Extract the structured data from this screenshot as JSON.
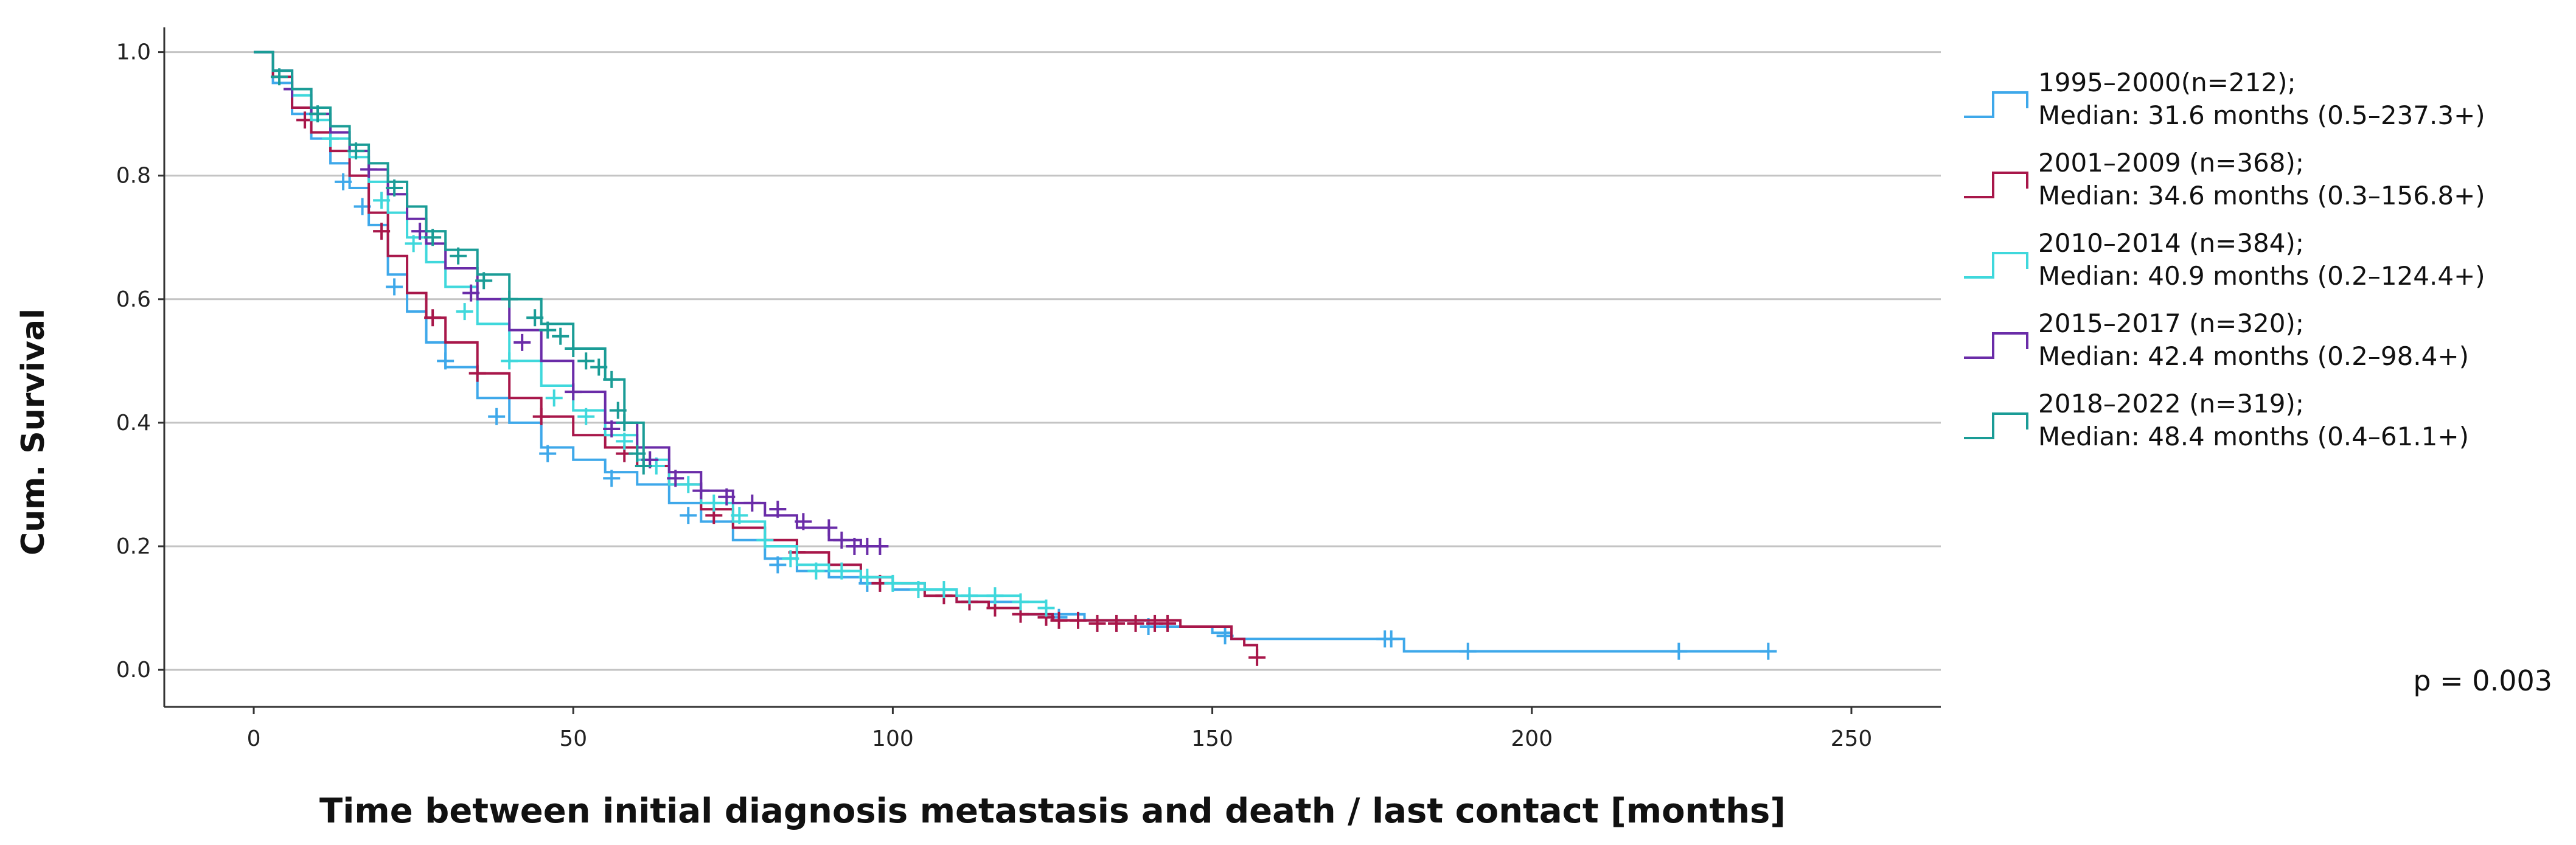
{
  "chart_data": {
    "type": "line",
    "subtype": "kaplan-meier",
    "title": "",
    "xlabel": "Time between initial diagnosis metastasis and death / last contact [months]",
    "ylabel": "Cum. Survival",
    "xlim": [
      -14,
      264
    ],
    "ylim": [
      -0.06,
      1.04
    ],
    "xticks": [
      0,
      50,
      100,
      150,
      200,
      250
    ],
    "yticks": [
      0.0,
      0.2,
      0.4,
      0.6,
      0.8,
      1.0
    ],
    "ytick_labels": [
      "0.0",
      "0.2",
      "0.4",
      "0.6",
      "0.8",
      "1.0"
    ],
    "grid": "horizontal",
    "legend_position": "right",
    "annotation": "p = 0.003",
    "series": [
      {
        "name": "1995–2000(n=212);",
        "median": "Median: 31.6 months (0.5–237.3+)",
        "color": "#3ea8ea",
        "x": [
          0,
          3,
          6,
          9,
          12,
          15,
          18,
          21,
          24,
          27,
          30,
          35,
          40,
          45,
          50,
          55,
          60,
          65,
          70,
          75,
          80,
          85,
          90,
          95,
          100,
          110,
          120,
          130,
          140,
          150,
          153,
          160,
          170,
          180,
          190,
          200,
          237
        ],
        "y": [
          1.0,
          0.95,
          0.9,
          0.86,
          0.82,
          0.78,
          0.72,
          0.64,
          0.58,
          0.53,
          0.49,
          0.44,
          0.4,
          0.36,
          0.34,
          0.32,
          0.3,
          0.27,
          0.24,
          0.21,
          0.18,
          0.16,
          0.15,
          0.14,
          0.13,
          0.11,
          0.09,
          0.08,
          0.07,
          0.06,
          0.05,
          0.05,
          0.05,
          0.03,
          0.03,
          0.03,
          0.03
        ],
        "censor_x": [
          14,
          17,
          22,
          30,
          38,
          46,
          56,
          68,
          82,
          96,
          112,
          126,
          140,
          152,
          177,
          178,
          190,
          223,
          237
        ],
        "censor_y": [
          0.79,
          0.75,
          0.62,
          0.5,
          0.41,
          0.35,
          0.31,
          0.25,
          0.17,
          0.14,
          0.11,
          0.085,
          0.07,
          0.055,
          0.05,
          0.05,
          0.03,
          0.03,
          0.03
        ]
      },
      {
        "name": "2001–2009 (n=368);",
        "median": "Median: 34.6 months (0.3–156.8+)",
        "color": "#a8174a",
        "x": [
          0,
          3,
          6,
          9,
          12,
          15,
          18,
          21,
          24,
          27,
          30,
          35,
          40,
          45,
          50,
          55,
          60,
          65,
          70,
          75,
          80,
          85,
          90,
          95,
          100,
          105,
          110,
          115,
          120,
          125,
          130,
          135,
          140,
          145,
          150,
          153,
          155,
          157
        ],
        "y": [
          1.0,
          0.96,
          0.91,
          0.87,
          0.84,
          0.8,
          0.74,
          0.67,
          0.61,
          0.57,
          0.53,
          0.48,
          0.44,
          0.41,
          0.38,
          0.36,
          0.33,
          0.3,
          0.26,
          0.23,
          0.21,
          0.19,
          0.17,
          0.15,
          0.14,
          0.12,
          0.11,
          0.1,
          0.09,
          0.08,
          0.08,
          0.08,
          0.08,
          0.07,
          0.07,
          0.05,
          0.04,
          0.02
        ],
        "censor_x": [
          8,
          20,
          28,
          35,
          45,
          58,
          72,
          85,
          98,
          108,
          112,
          116,
          120,
          124,
          126,
          129,
          132,
          135,
          138,
          141,
          143,
          157
        ],
        "censor_y": [
          0.89,
          0.71,
          0.57,
          0.48,
          0.41,
          0.35,
          0.25,
          0.19,
          0.14,
          0.12,
          0.11,
          0.1,
          0.09,
          0.085,
          0.08,
          0.08,
          0.075,
          0.075,
          0.075,
          0.075,
          0.075,
          0.02
        ]
      },
      {
        "name": "2010–2014 (n=384);",
        "median": "Median: 40.9 months (0.2–124.4+)",
        "color": "#3fd8dc",
        "x": [
          0,
          3,
          6,
          9,
          12,
          15,
          18,
          21,
          24,
          27,
          30,
          35,
          40,
          45,
          50,
          55,
          60,
          65,
          70,
          75,
          80,
          85,
          90,
          95,
          100,
          105,
          110,
          115,
          120,
          124
        ],
        "y": [
          1.0,
          0.97,
          0.93,
          0.89,
          0.86,
          0.83,
          0.79,
          0.74,
          0.7,
          0.66,
          0.62,
          0.56,
          0.5,
          0.46,
          0.42,
          0.38,
          0.34,
          0.3,
          0.27,
          0.24,
          0.2,
          0.17,
          0.16,
          0.15,
          0.14,
          0.13,
          0.12,
          0.12,
          0.11,
          0.1
        ],
        "censor_x": [
          12,
          20,
          25,
          33,
          40,
          47,
          52,
          58,
          63,
          68,
          72,
          76,
          80,
          84,
          88,
          92,
          96,
          100,
          104,
          108,
          112,
          116,
          120,
          124
        ],
        "censor_y": [
          0.86,
          0.76,
          0.69,
          0.58,
          0.5,
          0.44,
          0.41,
          0.37,
          0.33,
          0.3,
          0.27,
          0.25,
          0.21,
          0.18,
          0.16,
          0.16,
          0.15,
          0.14,
          0.13,
          0.13,
          0.12,
          0.12,
          0.11,
          0.1
        ]
      },
      {
        "name": "2015–2017 (n=320);",
        "median": "Median: 42.4 months (0.2–98.4+)",
        "color": "#6a2ca8",
        "x": [
          0,
          3,
          6,
          9,
          12,
          15,
          18,
          21,
          24,
          27,
          30,
          35,
          40,
          45,
          50,
          55,
          60,
          65,
          70,
          75,
          80,
          85,
          90,
          95,
          98
        ],
        "y": [
          1.0,
          0.97,
          0.94,
          0.9,
          0.87,
          0.84,
          0.81,
          0.77,
          0.73,
          0.69,
          0.65,
          0.6,
          0.55,
          0.5,
          0.45,
          0.4,
          0.36,
          0.32,
          0.29,
          0.27,
          0.25,
          0.23,
          0.21,
          0.2,
          0.2
        ],
        "censor_x": [
          6,
          18,
          26,
          34,
          42,
          50,
          56,
          62,
          66,
          70,
          74,
          78,
          82,
          86,
          90,
          92,
          94,
          96,
          98
        ],
        "censor_y": [
          0.94,
          0.81,
          0.71,
          0.61,
          0.53,
          0.45,
          0.39,
          0.34,
          0.31,
          0.29,
          0.28,
          0.27,
          0.26,
          0.24,
          0.23,
          0.21,
          0.2,
          0.2,
          0.2
        ]
      },
      {
        "name": "2018–2022 (n=319);",
        "median": "Median: 48.4 months (0.4–61.1+)",
        "color": "#1a9c96",
        "x": [
          0,
          3,
          6,
          9,
          12,
          15,
          18,
          21,
          24,
          27,
          30,
          35,
          40,
          45,
          50,
          55,
          58,
          61
        ],
        "y": [
          1.0,
          0.97,
          0.94,
          0.91,
          0.88,
          0.85,
          0.82,
          0.79,
          0.75,
          0.71,
          0.68,
          0.64,
          0.6,
          0.56,
          0.52,
          0.47,
          0.4,
          0.33
        ],
        "censor_x": [
          4,
          10,
          16,
          22,
          28,
          32,
          36,
          40,
          44,
          46,
          48,
          50,
          52,
          54,
          56,
          57,
          58,
          60,
          61
        ],
        "censor_y": [
          0.96,
          0.9,
          0.84,
          0.78,
          0.7,
          0.67,
          0.63,
          0.6,
          0.57,
          0.55,
          0.54,
          0.52,
          0.5,
          0.49,
          0.47,
          0.42,
          0.4,
          0.35,
          0.33
        ]
      }
    ]
  }
}
